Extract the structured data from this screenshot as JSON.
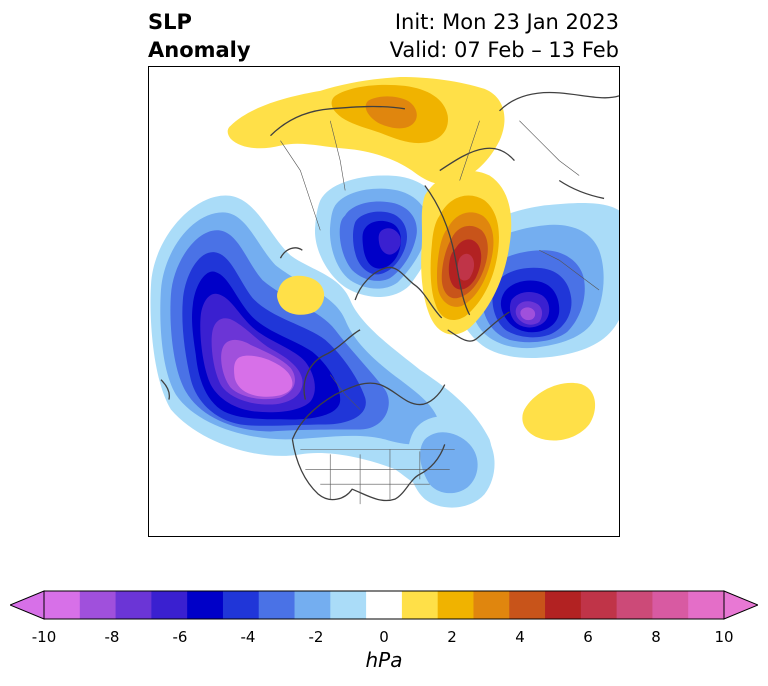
{
  "header": {
    "title_line1": "SLP",
    "title_line2": "Anomaly",
    "init_text": "Init: Mon 23 Jan 2023",
    "valid_text": "Valid: 07 Feb – 13 Feb"
  },
  "map": {
    "projection": "north-polar-stereographic",
    "field": "SLP anomaly",
    "features": [
      {
        "type": "negative",
        "region": "North Pacific / Gulf of Alaska",
        "peak_hPa": -10
      },
      {
        "type": "negative",
        "region": "Canadian Arctic / Greenland",
        "peak_hPa": -6
      },
      {
        "type": "negative",
        "region": "Western Russia / Scandinavia",
        "peak_hPa": -8
      },
      {
        "type": "negative",
        "region": "Western North Atlantic",
        "peak_hPa": -2
      },
      {
        "type": "positive",
        "region": "Arctic Ocean / Barents-Kara",
        "peak_hPa": 7
      },
      {
        "type": "positive",
        "region": "Eastern Siberia",
        "peak_hPa": 3
      },
      {
        "type": "positive",
        "region": "Central Pacific",
        "peak_hPa": 2
      },
      {
        "type": "positive",
        "region": "Eastern North Atlantic",
        "peak_hPa": 2
      }
    ]
  },
  "colorbar": {
    "unit": "hPa",
    "ticks": [
      "-10",
      "-8",
      "-6",
      "-4",
      "-2",
      "0",
      "2",
      "4",
      "6",
      "8",
      "10"
    ],
    "colors": [
      "#d770e8",
      "#a050dc",
      "#6b35d6",
      "#3a20d0",
      "#0000c8",
      "#2036d8",
      "#4a72e6",
      "#74aef0",
      "#aadcf8",
      "#ffffff",
      "#ffe048",
      "#f0b300",
      "#e0860e",
      "#c8541a",
      "#b22222",
      "#c03448",
      "#cc4a78",
      "#d85aa2",
      "#e46ec8"
    ],
    "under_color": "#d770e8",
    "over_color": "#e878d4"
  }
}
